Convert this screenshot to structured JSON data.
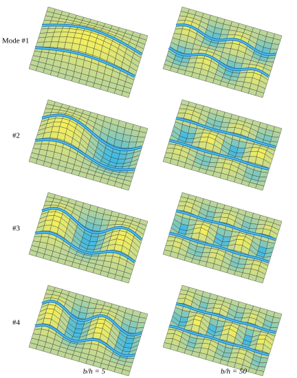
{
  "rows": [
    {
      "label": "Mode #1"
    },
    {
      "label": "#2"
    },
    {
      "label": "#3"
    },
    {
      "label": "#4"
    }
  ],
  "columns": [
    {
      "label": "b/h = 5"
    },
    {
      "label": "b/h = 50"
    }
  ]
}
